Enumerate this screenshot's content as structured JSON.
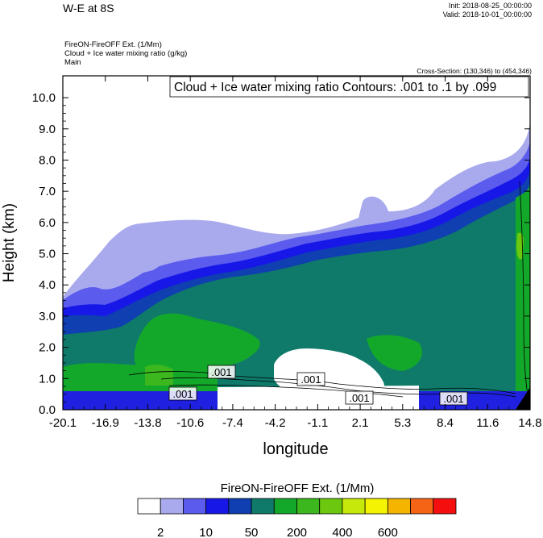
{
  "header": {
    "title": "W-E at 8S",
    "init": "Init: 2018-08-25_00:00:00",
    "valid": "Valid: 2018-10-01_00:00:00",
    "subtitle_lines": [
      "FireON-FireOFF Ext.   (1/Mm)",
      "Cloud + Ice water mixing ratio   (g/kg)",
      "Main"
    ],
    "cross_section": "Cross-Section: (130,346) to (454,346)"
  },
  "chart_data": {
    "type": "heatmap",
    "title": "W-E at 8S",
    "xlabel": "longitude",
    "ylabel": "Height (km)",
    "xlim": [
      -20.1,
      14.8
    ],
    "ylim": [
      0,
      10.7
    ],
    "x_ticks": [
      "-20.1",
      "-16.9",
      "-13.8",
      "-10.6",
      "-7.4",
      "-4.2",
      "-1.1",
      "2.1",
      "5.3",
      "8.4",
      "11.6",
      "14.8"
    ],
    "y_ticks": [
      "0.0",
      "1.0",
      "2.0",
      "3.0",
      "4.0",
      "5.0",
      "6.0",
      "7.0",
      "8.0",
      "9.0",
      "10.0"
    ],
    "contour_info": "Cloud + Ice water mixing ratio Contours: .001 to .1 by .099",
    "contour_labels": [
      ".001",
      ".001",
      ".001",
      ".001",
      ".001"
    ],
    "colorbar": {
      "title": "FireON-FireOFF Ext.  (1/Mm)",
      "tick_labels": [
        "2",
        "10",
        "50",
        "200",
        "400",
        "600"
      ],
      "colors": [
        "#ffffff",
        "#a9a9ee",
        "#5b5bee",
        "#1717e8",
        "#0f3fb0",
        "#0f7a6a",
        "#13a82a",
        "#3cb81e",
        "#6cc80e",
        "#c6e80a",
        "#f4f400",
        "#f4b400",
        "#f46414",
        "#f40e0e"
      ]
    }
  }
}
